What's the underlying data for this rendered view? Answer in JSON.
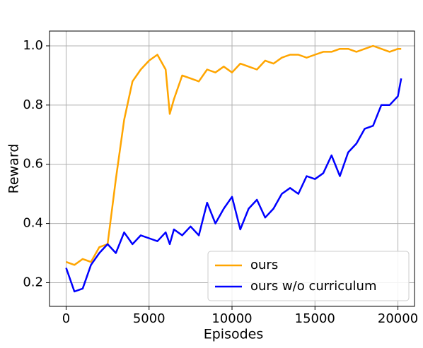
{
  "chart_data": {
    "type": "line",
    "xlabel": "Episodes",
    "ylabel": "Reward",
    "x": [
      0,
      500,
      1000,
      1500,
      2000,
      2500,
      3000,
      3500,
      4000,
      4500,
      5000,
      5500,
      6000,
      6250,
      6500,
      7000,
      7500,
      8000,
      8500,
      9000,
      9500,
      10000,
      10500,
      11000,
      11500,
      12000,
      12500,
      13000,
      13500,
      14000,
      14500,
      15000,
      15500,
      16000,
      16500,
      17000,
      17500,
      18000,
      18500,
      19000,
      19500,
      20000,
      20200
    ],
    "series": [
      {
        "name": "ours",
        "color": "#ffa500",
        "values": [
          0.27,
          0.26,
          0.28,
          0.27,
          0.32,
          0.33,
          0.55,
          0.75,
          0.88,
          0.92,
          0.95,
          0.97,
          0.92,
          0.77,
          0.82,
          0.9,
          0.89,
          0.88,
          0.92,
          0.91,
          0.93,
          0.91,
          0.94,
          0.93,
          0.92,
          0.95,
          0.94,
          0.96,
          0.97,
          0.97,
          0.96,
          0.97,
          0.98,
          0.98,
          0.99,
          0.99,
          0.98,
          0.99,
          1.0,
          0.99,
          0.98,
          0.99,
          0.99
        ]
      },
      {
        "name": "ours w/o curriculum",
        "color": "#0000ff",
        "values": [
          0.25,
          0.17,
          0.18,
          0.26,
          0.3,
          0.33,
          0.3,
          0.37,
          0.33,
          0.36,
          0.35,
          0.34,
          0.37,
          0.33,
          0.38,
          0.36,
          0.39,
          0.36,
          0.47,
          0.4,
          0.45,
          0.49,
          0.38,
          0.45,
          0.48,
          0.42,
          0.45,
          0.5,
          0.52,
          0.5,
          0.56,
          0.55,
          0.57,
          0.63,
          0.56,
          0.64,
          0.67,
          0.72,
          0.73,
          0.8,
          0.8,
          0.83,
          0.89
        ]
      }
    ],
    "xlim": [
      -1000,
      21000
    ],
    "xticks": [
      0,
      5000,
      10000,
      15000,
      20000
    ],
    "ylim": [
      0.12,
      1.05
    ],
    "yticks": [
      0.2,
      0.4,
      0.6,
      0.8,
      {
        "value": 1.0,
        "label": "1.0"
      }
    ],
    "grid": true,
    "legend": "lower right"
  }
}
